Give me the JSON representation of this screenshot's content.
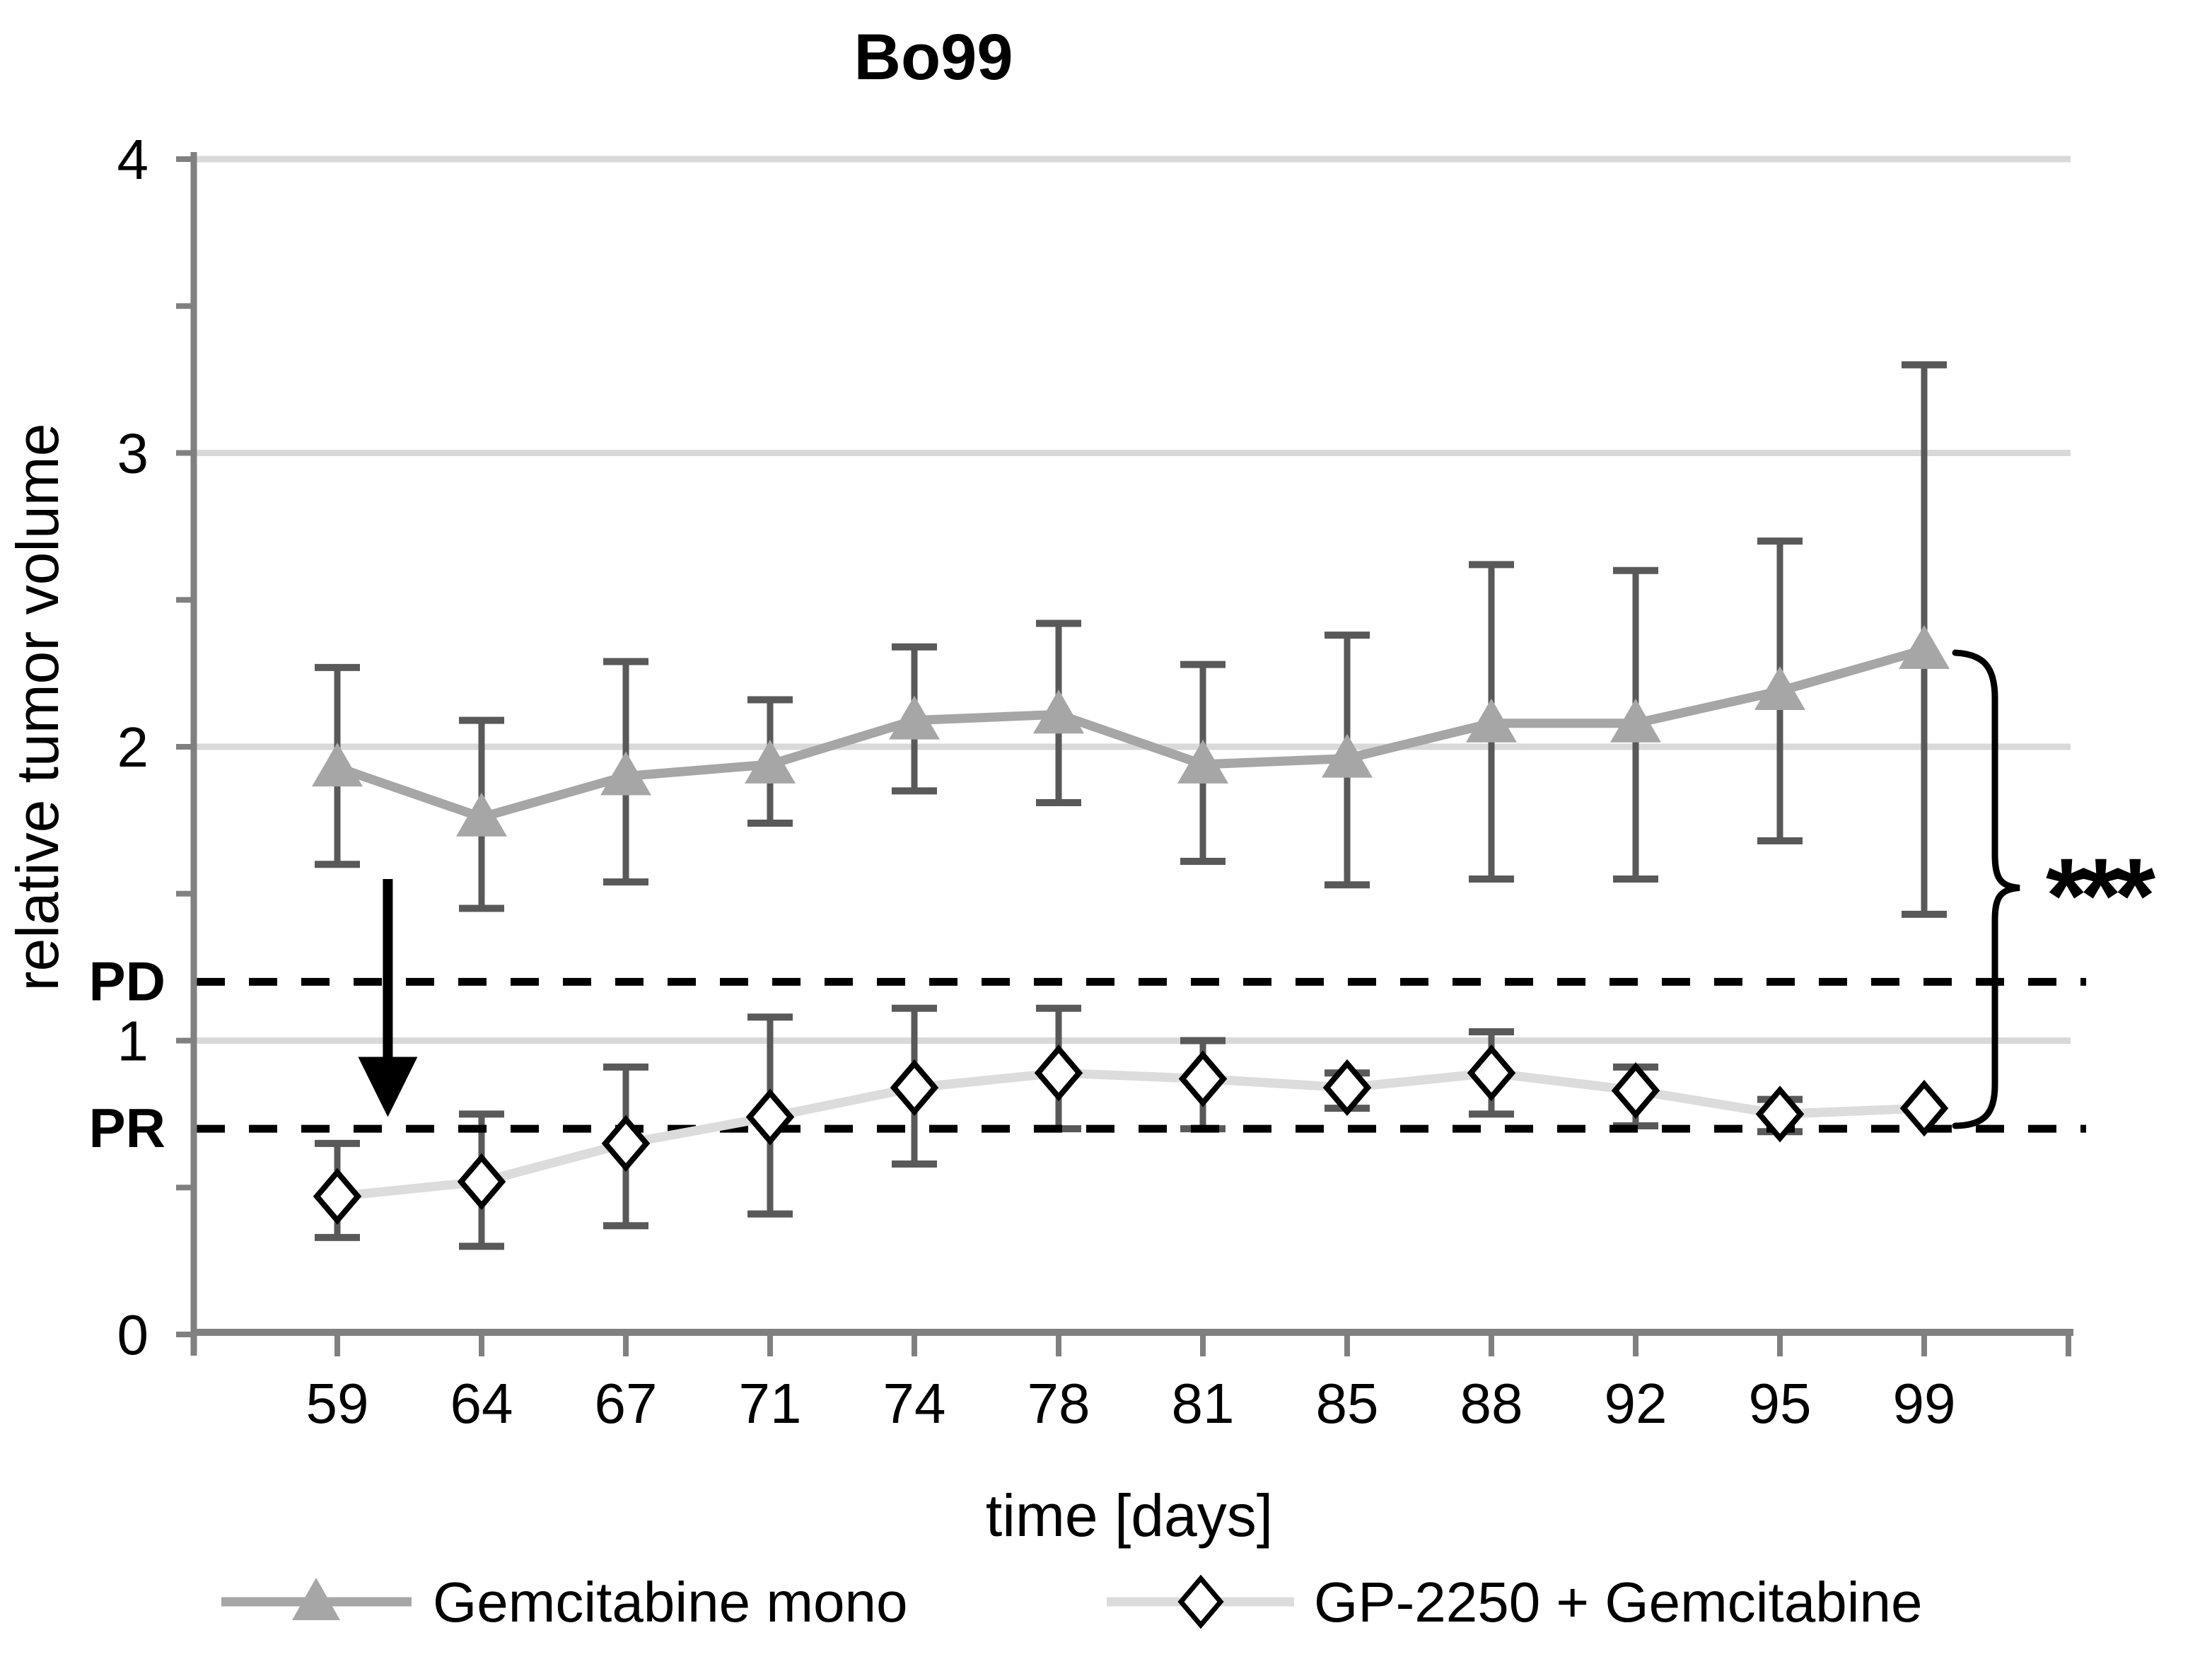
{
  "colors": {
    "axis": "#808080",
    "gridline": "#d9d9d9",
    "error_bar": "#595959",
    "mono_series": "#a6a6a6",
    "combo_series_line": "#dcdcdc",
    "combo_marker_fill": "#ffffff",
    "combo_marker_stroke": "#000000",
    "threshold_line": "#000000",
    "arrow": "#000000",
    "background": "#ffffff"
  },
  "chart_data": {
    "type": "line",
    "title": "Bo99",
    "xlabel": "time [days]",
    "ylabel": "relative tumor volume",
    "x_categories": [
      "59",
      "64",
      "67",
      "71",
      "74",
      "78",
      "81",
      "85",
      "88",
      "92",
      "95",
      "99"
    ],
    "ylim": [
      0,
      4
    ],
    "y_major_ticks": [
      "4",
      "3",
      "2",
      "1",
      "0"
    ],
    "y_major_tick_values": [
      4,
      3,
      2,
      1,
      0
    ],
    "y_minor_tick_step": 0.5,
    "grid": "horizontal major gridlines on",
    "legend_position": "bottom",
    "series": [
      {
        "name": "Gemcitabine mono",
        "marker": "triangle",
        "line_color": "#a6a6a6",
        "marker_fill": "#a6a6a6",
        "error_color": "#595959",
        "values": [
          1.93,
          1.76,
          1.9,
          1.94,
          2.09,
          2.11,
          1.94,
          1.96,
          2.08,
          2.08,
          2.19,
          2.33
        ],
        "err_high": [
          2.27,
          2.09,
          2.29,
          2.16,
          2.34,
          2.42,
          2.28,
          2.38,
          2.62,
          2.6,
          2.7,
          3.3
        ],
        "err_low": [
          1.6,
          1.45,
          1.54,
          1.74,
          1.85,
          1.81,
          1.61,
          1.53,
          1.55,
          1.55,
          1.68,
          1.43
        ]
      },
      {
        "name": "GP-2250 + Gemcitabine",
        "marker": "diamond",
        "line_color": "#dcdcdc",
        "marker_fill": "#ffffff",
        "marker_stroke": "#000000",
        "error_color": "#595959",
        "values": [
          0.47,
          0.52,
          0.65,
          0.74,
          0.84,
          0.89,
          0.87,
          0.84,
          0.89,
          0.83,
          0.75,
          0.77
        ],
        "err_high": [
          0.65,
          0.75,
          0.91,
          1.08,
          1.11,
          1.11,
          1.0,
          0.89,
          1.03,
          0.91,
          0.8,
          0.77
        ],
        "err_low": [
          0.33,
          0.3,
          0.37,
          0.41,
          0.58,
          0.7,
          0.7,
          0.77,
          0.75,
          0.71,
          0.69,
          0.77
        ]
      }
    ],
    "thresholds": [
      {
        "label": "PD",
        "value": 1.2
      },
      {
        "label": "PR",
        "value": 0.7
      }
    ],
    "annotations": {
      "significance": {
        "text": "***",
        "bracket_top_value": 2.32,
        "bracket_bottom_value": 0.71,
        "bracket_mid_value": 1.52
      },
      "treatment_arrow": {
        "between_categories": [
          "59",
          "64"
        ],
        "offset_fraction": 0.35,
        "from_value": 1.55,
        "to_value": 0.74,
        "direction": "down"
      }
    }
  }
}
